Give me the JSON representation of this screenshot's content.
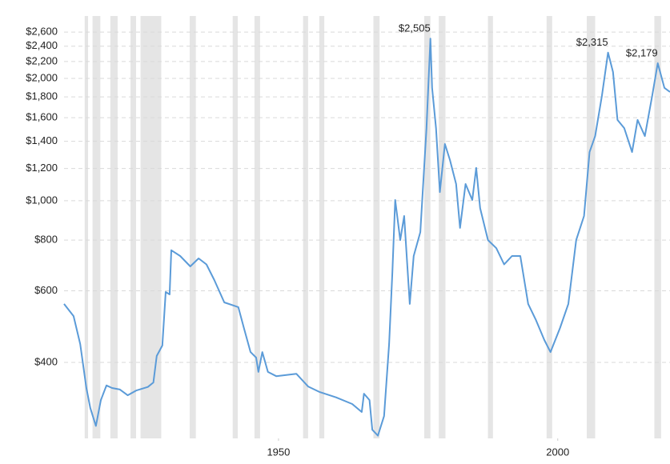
{
  "chart_data": {
    "type": "line",
    "x": [
      1911.6,
      1913.3,
      1914.5,
      1915.6,
      1916.3,
      1917.3,
      1918.2,
      1919.2,
      1920.2,
      1921.6,
      1923.0,
      1924.5,
      1926.6,
      1927.6,
      1928.2,
      1929.2,
      1929.8,
      1930.5,
      1930.8,
      1932.4,
      1934.2,
      1935.7,
      1937.1,
      1938.5,
      1940.3,
      1942.8,
      1943.8,
      1945.0,
      1946.0,
      1946.4,
      1947.1,
      1948.1,
      1949.6,
      1953.2,
      1955.3,
      1957.4,
      1960.3,
      1963.2,
      1964.9,
      1965.3,
      1966.3,
      1966.8,
      1967.8,
      1968.9,
      1969.8,
      1970.4,
      1970.9,
      1971.8,
      1972.5,
      1973.5,
      1974.2,
      1975.4,
      1976.5,
      1977.2,
      1977.5,
      1978.2,
      1978.9,
      1979.8,
      1980.7,
      1981.8,
      1982.5,
      1983.5,
      1984.7,
      1985.4,
      1986.1,
      1987.5,
      1989.0,
      1990.4,
      1991.8,
      1993.3,
      1994.7,
      1996.1,
      1997.6,
      1998.7,
      2000.4,
      2001.9,
      2003.3,
      2004.7,
      2005.7,
      2006.7,
      2007.9,
      2009.0,
      2009.9,
      2010.7,
      2011.9,
      2013.3,
      2014.3,
      2015.6,
      2016.9,
      2017.9,
      2019.1,
      2020.1
    ],
    "values": [
      557,
      520,
      444,
      346,
      309,
      279,
      323,
      351,
      346,
      343,
      332,
      341,
      348,
      357,
      415,
      440,
      596,
      588,
      755,
      731,
      689,
      721,
      697,
      638,
      562,
      547,
      486,
      424,
      411,
      379,
      424,
      379,
      370,
      375,
      349,
      338,
      328,
      316,
      302,
      335,
      323,
      273,
      264,
      295,
      444,
      668,
      1004,
      800,
      917,
      557,
      731,
      837,
      1509,
      2505,
      1895,
      1509,
      1050,
      1379,
      1259,
      1099,
      857,
      1099,
      1004,
      1204,
      959,
      800,
      764,
      697,
      731,
      731,
      557,
      508,
      454,
      424,
      486,
      557,
      800,
      917,
      1317,
      1442,
      1810,
      2315,
      2073,
      1580,
      1509,
      1317,
      1580,
      1442,
      1810,
      2179,
      1895,
      1851
    ],
    "color": "#5b9bd8",
    "log_scale": true,
    "grid": true,
    "xlim": [
      1911.6,
      2020.1
    ],
    "xticks": [
      1950,
      2000
    ],
    "ylim": [
      260,
      3048
    ],
    "yticks": [
      {
        "value": 400,
        "label": "$400"
      },
      {
        "value": 600,
        "label": "$600"
      },
      {
        "value": 800,
        "label": "$800"
      },
      {
        "value": 1000,
        "label": "$1,000"
      },
      {
        "value": 1200,
        "label": "$1,200"
      },
      {
        "value": 1400,
        "label": "$1,400"
      },
      {
        "value": 1600,
        "label": "$1,600"
      },
      {
        "value": 1800,
        "label": "$1,800"
      },
      {
        "value": 2000,
        "label": "$2,000"
      },
      {
        "value": 2200,
        "label": "$2,200"
      },
      {
        "value": 2400,
        "label": "$2,400"
      },
      {
        "value": 2600,
        "label": "$2,600"
      }
    ],
    "recession_color": "#e5e5e5",
    "recessions": [
      [
        1915.3,
        1915.9
      ],
      [
        1916.7,
        1918.1
      ],
      [
        1919.9,
        1921.2
      ],
      [
        1923.5,
        1924.5
      ],
      [
        1925.3,
        1929.0
      ],
      [
        1934.1,
        1935.2
      ],
      [
        1941.8,
        1942.7
      ],
      [
        1945.7,
        1946.7
      ],
      [
        1954.4,
        1955.3
      ],
      [
        1957.3,
        1958.2
      ],
      [
        1967.0,
        1968.1
      ],
      [
        1976.1,
        1977.2
      ],
      [
        1978.7,
        1979.9
      ],
      [
        1987.5,
        1988.4
      ],
      [
        1998.0,
        1999.0
      ],
      [
        2005.2,
        2006.7
      ],
      [
        2017.3,
        2018.5
      ]
    ],
    "annotations": [
      {
        "x": 1977.2,
        "y": 2505,
        "label": "$2,505"
      },
      {
        "x": 2009.0,
        "y": 2315,
        "label": "$2,315"
      },
      {
        "x": 2017.9,
        "y": 2179,
        "label": "$2,179"
      }
    ]
  }
}
